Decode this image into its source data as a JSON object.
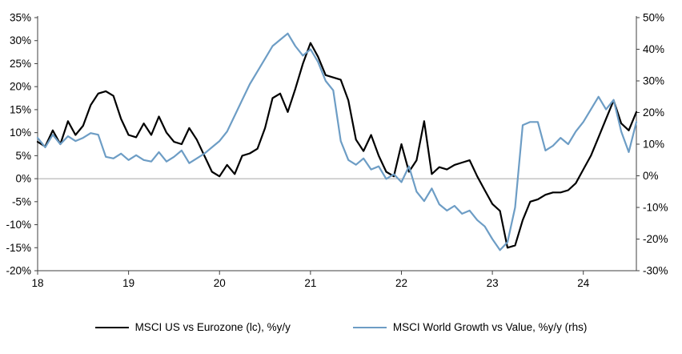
{
  "chart_data": {
    "type": "line",
    "title": "",
    "x_unit": "month",
    "x_start": "2018-01",
    "x_tick_labels": [
      "18",
      "19",
      "20",
      "21",
      "22",
      "23",
      "24"
    ],
    "x_tick_month_indices": [
      0,
      12,
      24,
      36,
      48,
      60,
      72
    ],
    "grid": "zero-line-only",
    "zero_line_color": "#a6a6a6",
    "axis_color": "#404040",
    "left_axis": {
      "min": -20,
      "max": 35,
      "step": 5,
      "ticks": [
        "35%",
        "30%",
        "25%",
        "20%",
        "15%",
        "10%",
        "5%",
        "0%",
        "-5%",
        "-10%",
        "-15%",
        "-20%"
      ]
    },
    "right_axis": {
      "min": -30,
      "max": 50,
      "step": 10,
      "ticks": [
        "50%",
        "40%",
        "30%",
        "20%",
        "10%",
        "0%",
        "-10%",
        "-20%",
        "-30%"
      ]
    },
    "legend_position": "bottom-center",
    "series": [
      {
        "name": "MSCI US vs Eurozone (lc), %y/y",
        "axis": "left",
        "color": "#000000",
        "values": [
          8,
          7,
          10.5,
          7.5,
          12.5,
          9.5,
          11.5,
          16,
          18.5,
          19,
          18,
          13,
          9.5,
          9,
          12,
          9.5,
          13.5,
          10,
          8,
          7.5,
          11,
          8.5,
          5,
          1.5,
          0.5,
          3,
          1,
          5,
          5.5,
          6.5,
          11,
          17.5,
          18.5,
          14.5,
          19.5,
          25,
          29.5,
          26.5,
          22.5,
          22,
          21.5,
          17,
          8.5,
          6,
          9.5,
          5,
          1.5,
          0.5,
          7.5,
          1.5,
          4,
          12.5,
          1,
          2.5,
          2,
          3,
          3.5,
          4,
          0.5,
          -2.5,
          -5.5,
          -7,
          -15,
          -14.5,
          -9,
          -5,
          -4.5,
          -3.5,
          -3,
          -3,
          -2.5,
          -1,
          2,
          5,
          9,
          13,
          17,
          12,
          10.5,
          14.5
        ]
      },
      {
        "name": "MSCI World Growth vs Value, %y/y (rhs)",
        "axis": "right",
        "color": "#6d9dc5",
        "values": [
          12,
          9,
          13,
          10,
          12.5,
          11,
          12,
          13.5,
          13,
          6,
          5.5,
          7,
          5,
          6.5,
          5,
          4.5,
          7.5,
          4.5,
          6,
          8,
          4,
          5.5,
          7,
          9,
          11,
          14,
          19,
          24,
          29,
          33,
          37,
          41,
          43,
          45,
          41,
          38,
          40,
          36,
          30,
          27,
          11,
          5,
          3.5,
          5.5,
          2,
          3,
          -1,
          0.5,
          -2,
          3,
          -5,
          -8,
          -4,
          -9,
          -11,
          -9.5,
          -12,
          -11,
          -14,
          -16,
          -20,
          -23.5,
          -21,
          -10,
          16,
          17,
          17,
          8,
          9.5,
          12,
          10,
          14,
          17,
          21,
          25,
          21,
          24,
          14,
          7.5,
          17
        ]
      }
    ]
  }
}
